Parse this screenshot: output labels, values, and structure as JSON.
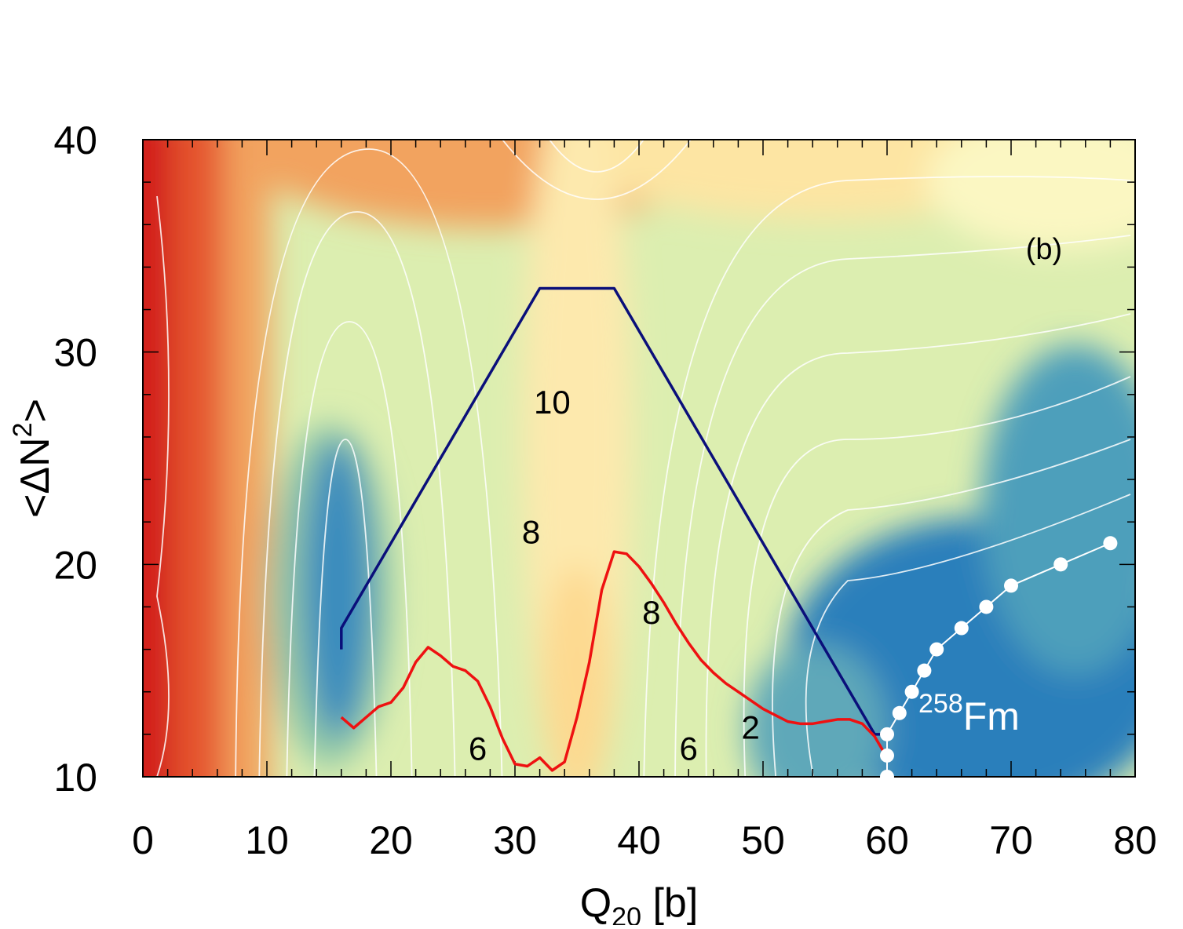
{
  "chart_data": {
    "type": "heatmap",
    "panel_label": "(b)",
    "xlabel": {
      "main": "Q",
      "sub": "20",
      "unit": " [b]"
    },
    "ylabel": {
      "pre": "<ΔN",
      "sup": "2",
      "post": ">"
    },
    "xlim": [
      0,
      80
    ],
    "ylim": [
      10,
      40
    ],
    "x_ticks": [
      0,
      10,
      20,
      30,
      40,
      50,
      60,
      70,
      80
    ],
    "y_ticks": [
      10,
      20,
      30,
      40
    ],
    "colormap": [
      "#2b7fbb",
      "#5fa8b9",
      "#9ed1a0",
      "#dff0ae",
      "#fffec0",
      "#fdd48a",
      "#f6a35c",
      "#e85b3a",
      "#d21f1f"
    ],
    "series": [
      {
        "name": "blue path",
        "color": "#0a0f7a",
        "points": [
          [
            16,
            16
          ],
          [
            16,
            17
          ],
          [
            32,
            33
          ],
          [
            38,
            33
          ],
          [
            59,
            12
          ],
          [
            60,
            12
          ]
        ]
      },
      {
        "name": "red path",
        "color": "#ee1111",
        "points": [
          [
            16,
            12.8
          ],
          [
            17,
            12.3
          ],
          [
            18,
            12.8
          ],
          [
            19,
            13.3
          ],
          [
            20,
            13.5
          ],
          [
            21,
            14.2
          ],
          [
            22,
            15.4
          ],
          [
            23,
            16.1
          ],
          [
            24,
            15.7
          ],
          [
            25,
            15.2
          ],
          [
            26,
            15
          ],
          [
            27,
            14.5
          ],
          [
            28,
            13.3
          ],
          [
            29,
            11.8
          ],
          [
            30,
            10.6
          ],
          [
            31,
            10.5
          ],
          [
            32,
            10.9
          ],
          [
            33,
            10.3
          ],
          [
            34,
            10.7
          ],
          [
            35,
            12.8
          ],
          [
            36,
            15.4
          ],
          [
            37,
            18.8
          ],
          [
            38,
            20.6
          ],
          [
            39,
            20.5
          ],
          [
            40,
            19.9
          ],
          [
            41,
            19.1
          ],
          [
            42,
            18.2
          ],
          [
            43,
            17.2
          ],
          [
            44,
            16.3
          ],
          [
            45,
            15.5
          ],
          [
            46,
            14.9
          ],
          [
            47,
            14.4
          ],
          [
            48,
            14
          ],
          [
            49,
            13.6
          ],
          [
            50,
            13.2
          ],
          [
            51,
            12.9
          ],
          [
            52,
            12.6
          ],
          [
            53,
            12.5
          ],
          [
            54,
            12.5
          ],
          [
            55,
            12.6
          ],
          [
            56,
            12.7
          ],
          [
            57,
            12.7
          ],
          [
            58,
            12.5
          ],
          [
            59,
            11.9
          ],
          [
            60,
            10.9
          ]
        ]
      },
      {
        "name": "258Fm",
        "color": "#ffffff",
        "points": [
          [
            60,
            10
          ],
          [
            60,
            11
          ],
          [
            60,
            12
          ],
          [
            61,
            13
          ],
          [
            62,
            14
          ],
          [
            63,
            15
          ],
          [
            64,
            16
          ],
          [
            66,
            17
          ],
          [
            68,
            18
          ],
          [
            70,
            19
          ],
          [
            74,
            20
          ],
          [
            78,
            21
          ]
        ]
      }
    ],
    "annotations": [
      {
        "text": "10",
        "x": 33,
        "y": 27.1,
        "color": "#000000"
      },
      {
        "text": "8",
        "x": 31.3,
        "y": 21,
        "color": "#000000"
      },
      {
        "text": "8",
        "x": 41,
        "y": 17.2,
        "color": "#000000"
      },
      {
        "text": "6",
        "x": 27,
        "y": 10.8,
        "color": "#000000"
      },
      {
        "text": "6",
        "x": 44,
        "y": 10.8,
        "color": "#000000"
      },
      {
        "text": "2",
        "x": 49,
        "y": 11.8,
        "color": "#000000"
      }
    ],
    "nucleus_label": {
      "mass": "258",
      "symbol": "Fm",
      "color": "#ffffff"
    }
  }
}
